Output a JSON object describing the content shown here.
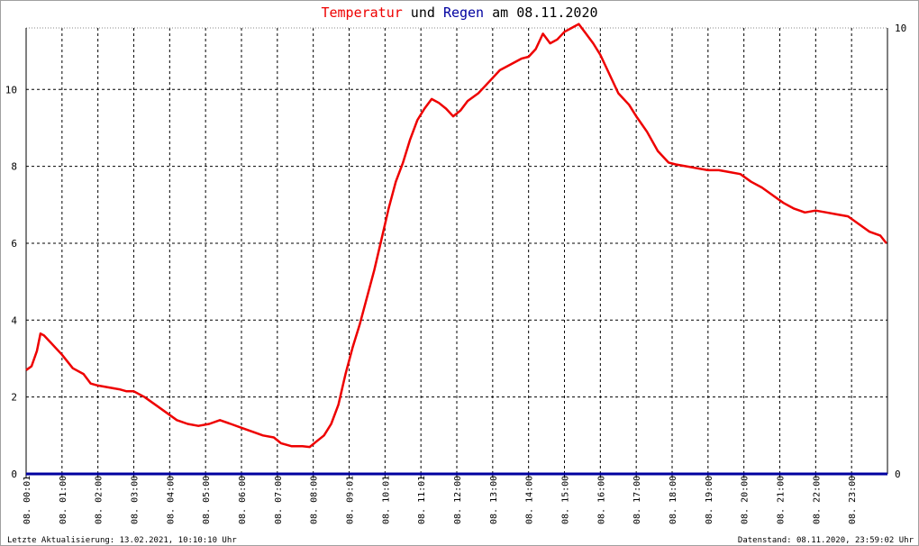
{
  "title": {
    "part1": "Temperatur",
    "part2": " und ",
    "part3": "Regen",
    "part4": " am 08.11.2020"
  },
  "colors": {
    "temperature": "#ee0000",
    "rain": "#0000a0",
    "text": "#000000",
    "grid": "#000000"
  },
  "footer": {
    "left": "Letzte Aktualisierung: 13.02.2021, 10:10:10 Uhr",
    "right": "Datenstand: 08.11.2020, 23:59:02 Uhr"
  },
  "chart_data": {
    "type": "line",
    "title": "Temperatur und Regen am 08.11.2020",
    "xlabel": "",
    "ylabel": "",
    "x_unit": "hours",
    "xlim": [
      0,
      24
    ],
    "ylim_left": [
      0,
      11.6
    ],
    "ylim_right": [
      0,
      10
    ],
    "y_ticks_left": [
      0,
      2,
      4,
      6,
      8,
      10
    ],
    "y_ticks_right": [
      0,
      10
    ],
    "x_tick_labels": [
      "08. 00:01",
      "08. 01:00",
      "08. 02:00",
      "08. 03:00",
      "08. 04:00",
      "08. 05:00",
      "08. 06:00",
      "08. 07:00",
      "08. 08:00",
      "08. 09:01",
      "08. 10:01",
      "08. 11:01",
      "08. 12:00",
      "08. 13:00",
      "08. 14:00",
      "08. 15:00",
      "08. 16:00",
      "08. 17:00",
      "08. 18:00",
      "08. 19:00",
      "08. 20:00",
      "08. 21:00",
      "08. 22:00",
      "08. 23:00"
    ],
    "grid": true,
    "series": [
      {
        "name": "Temperatur",
        "axis": "left",
        "color": "#ee0000",
        "x": [
          0.0,
          0.15,
          0.3,
          0.4,
          0.5,
          0.7,
          1.0,
          1.3,
          1.6,
          1.8,
          2.0,
          2.3,
          2.6,
          2.8,
          3.0,
          3.3,
          3.6,
          3.9,
          4.2,
          4.5,
          4.8,
          5.1,
          5.4,
          5.7,
          6.0,
          6.3,
          6.6,
          6.9,
          7.1,
          7.4,
          7.7,
          7.9,
          8.1,
          8.3,
          8.5,
          8.7,
          8.9,
          9.1,
          9.3,
          9.5,
          9.7,
          9.9,
          10.1,
          10.3,
          10.5,
          10.7,
          10.9,
          11.1,
          11.3,
          11.5,
          11.7,
          11.9,
          12.1,
          12.3,
          12.6,
          12.9,
          13.2,
          13.5,
          13.8,
          14.0,
          14.2,
          14.4,
          14.6,
          14.8,
          15.0,
          15.2,
          15.4,
          15.6,
          15.8,
          16.0,
          16.2,
          16.5,
          16.8,
          17.0,
          17.3,
          17.6,
          17.9,
          18.1,
          18.4,
          18.7,
          19.0,
          19.3,
          19.6,
          19.9,
          20.2,
          20.5,
          20.8,
          21.1,
          21.4,
          21.7,
          22.0,
          22.3,
          22.6,
          22.9,
          23.2,
          23.5,
          23.8,
          23.97
        ],
        "values": [
          2.7,
          2.8,
          3.2,
          3.65,
          3.6,
          3.4,
          3.1,
          2.75,
          2.6,
          2.35,
          2.3,
          2.25,
          2.2,
          2.15,
          2.15,
          2.0,
          1.8,
          1.6,
          1.4,
          1.3,
          1.25,
          1.3,
          1.4,
          1.3,
          1.2,
          1.1,
          1.0,
          0.95,
          0.8,
          0.72,
          0.72,
          0.7,
          0.85,
          1.0,
          1.3,
          1.8,
          2.6,
          3.3,
          3.9,
          4.6,
          5.3,
          6.1,
          6.9,
          7.6,
          8.1,
          8.7,
          9.2,
          9.5,
          9.75,
          9.65,
          9.5,
          9.3,
          9.45,
          9.7,
          9.9,
          10.2,
          10.5,
          10.65,
          10.8,
          10.85,
          11.05,
          11.45,
          11.2,
          11.3,
          11.5,
          11.6,
          11.7,
          11.45,
          11.2,
          10.9,
          10.5,
          9.9,
          9.6,
          9.3,
          8.9,
          8.4,
          8.1,
          8.05,
          8.0,
          7.95,
          7.9,
          7.9,
          7.85,
          7.8,
          7.6,
          7.45,
          7.25,
          7.05,
          6.9,
          6.8,
          6.85,
          6.8,
          6.75,
          6.7,
          6.5,
          6.3,
          6.2,
          6.0
        ]
      },
      {
        "name": "Regen",
        "axis": "right",
        "color": "#0000a0",
        "x": [
          0,
          24
        ],
        "values": [
          0,
          0
        ]
      }
    ]
  }
}
